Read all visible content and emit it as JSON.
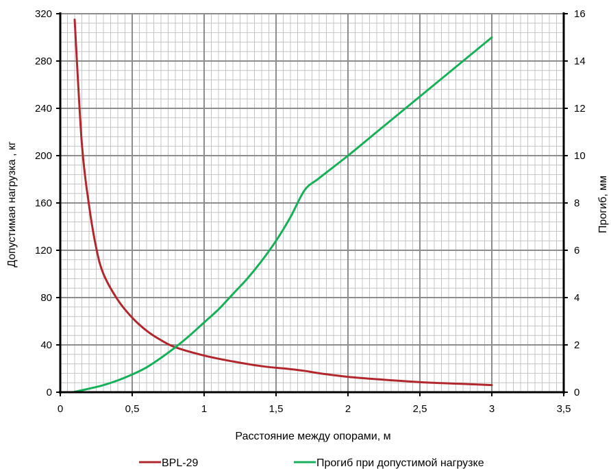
{
  "chart_data": {
    "type": "line",
    "xlabel": "Расстояние между опорами, м",
    "ylabel_left": "Допустимая нагрузка ,  кг",
    "ylabel_right": "Прогиб, мм",
    "xlim": [
      0,
      3.5
    ],
    "ylim_left": [
      0,
      320
    ],
    "ylim_right": [
      0,
      16
    ],
    "x_ticks": [
      "0",
      "0,5",
      "1",
      "1,5",
      "2",
      "2,5",
      "3",
      "3,5"
    ],
    "y_left_ticks": [
      "0",
      "40",
      "80",
      "120",
      "160",
      "200",
      "240",
      "280",
      "320"
    ],
    "y_right_ticks": [
      "0",
      "2",
      "4",
      "6",
      "8",
      "10",
      "12",
      "14",
      "16"
    ],
    "grid": true,
    "legend_position": "bottom",
    "series": [
      {
        "name": "BPL-29",
        "axis": "left",
        "color": "#b0282e",
        "x": [
          0.1,
          0.15,
          0.2,
          0.25,
          0.3,
          0.4,
          0.5,
          0.6,
          0.7,
          0.8,
          1.0,
          1.2,
          1.4,
          1.6,
          1.7,
          1.8,
          2.0,
          2.2,
          2.5,
          2.8,
          3.0
        ],
        "y": [
          315,
          210,
          158,
          122,
          100,
          78,
          63,
          52,
          44,
          38,
          31,
          26,
          22,
          19.5,
          18,
          16,
          13,
          11,
          8.5,
          7,
          6
        ]
      },
      {
        "name": "Прогиб при допустимой нагрузке",
        "axis": "right",
        "color": "#17b05a",
        "x": [
          0.1,
          0.2,
          0.3,
          0.4,
          0.5,
          0.6,
          0.7,
          0.8,
          0.9,
          1.0,
          1.1,
          1.2,
          1.3,
          1.4,
          1.5,
          1.6,
          1.7,
          1.8,
          2.0,
          2.2,
          2.5,
          2.8,
          3.0
        ],
        "y": [
          0.02,
          0.15,
          0.3,
          0.5,
          0.75,
          1.05,
          1.45,
          1.9,
          2.4,
          2.95,
          3.5,
          4.15,
          4.8,
          5.55,
          6.4,
          7.4,
          8.55,
          9.05,
          10.0,
          11.0,
          12.5,
          14.0,
          15.0
        ]
      }
    ]
  }
}
